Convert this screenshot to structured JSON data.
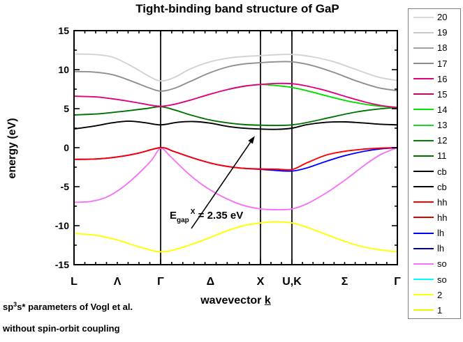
{
  "figure": {
    "title": "Tight-binding band structure of GaP",
    "y_axis_label": "energy (eV)",
    "x_axis_label_prefix": "wavevector ",
    "x_axis_label_k": "k",
    "footnote1": {
      "prefix": "sp",
      "sup": "3",
      "suffix": "s* parameters of Vogl et al."
    },
    "footnote2": "without spin-orbit coupling"
  },
  "annotation": {
    "symbol": "E",
    "subscript": "gap",
    "superscript": "X",
    "value_text": " = 2.35 eV",
    "arrow_tail": {
      "t": 0.363,
      "E": -10.35
    },
    "arrow_tip": {
      "t": 0.559,
      "E": 1.5
    }
  },
  "chart_data": {
    "type": "line",
    "title": "Tight-binding band structure of GaP",
    "xlabel": "wavevector k",
    "ylabel": "energy (eV)",
    "ylim": [
      -15,
      15
    ],
    "y_major_ticks": [
      -15,
      -10,
      -5,
      0,
      5,
      10,
      15
    ],
    "y_minor_step": 2.5,
    "x_special_points": [
      {
        "label": "L",
        "t": 0.0
      },
      {
        "label": "Γ",
        "t": 0.2678
      },
      {
        "label": "X",
        "t": 0.5767
      },
      {
        "label": "U,K",
        "t": 0.6739
      },
      {
        "label": "Γ",
        "t": 1.0
      }
    ],
    "x_direction_labels": [
      {
        "label": "Λ",
        "t": 0.134
      },
      {
        "label": "Δ",
        "t": 0.422
      },
      {
        "label": "Σ",
        "t": 0.837
      }
    ],
    "x_minor_divisions": [
      8,
      9,
      3,
      10
    ],
    "vertical_lines_t": [
      0.2678,
      0.5767,
      0.6739
    ],
    "grid": false,
    "legend_position": "outside-right",
    "legend": [
      {
        "label": "20",
        "color": "#D8D8D8"
      },
      {
        "label": "19",
        "color": "#C9C9C9"
      },
      {
        "label": "18",
        "color": "#A3A3A3"
      },
      {
        "label": "17",
        "color": "#8C8C8C"
      },
      {
        "label": "16",
        "color": "#E4007C"
      },
      {
        "label": "15",
        "color": "#C4006C"
      },
      {
        "label": "14",
        "color": "#00E600"
      },
      {
        "label": "13",
        "color": "#1FD51F"
      },
      {
        "label": "12",
        "color": "#008200"
      },
      {
        "label": "11",
        "color": "#006B00"
      },
      {
        "label": "cb",
        "color": "#000000"
      },
      {
        "label": "cb",
        "color": "#000000"
      },
      {
        "label": "hh",
        "color": "#FF0000"
      },
      {
        "label": "hh",
        "color": "#DF0000"
      },
      {
        "label": "lh",
        "color": "#0000FF"
      },
      {
        "label": "lh",
        "color": "#000085"
      },
      {
        "label": "so",
        "color": "#F473F4"
      },
      {
        "label": "so",
        "color": "#00FFFF"
      },
      {
        "label": "2",
        "color": "#FFFF00"
      },
      {
        "label": "1",
        "color": "#F2F200"
      }
    ],
    "series": [
      {
        "name": "band-1-2",
        "represents": [
          "1",
          "2"
        ],
        "color": "#FFFF00",
        "points": [
          [
            0,
            -11.0
          ],
          [
            0.07,
            -11.25
          ],
          [
            0.14,
            -11.9
          ],
          [
            0.2,
            -12.7
          ],
          [
            0.268,
            -13.35
          ],
          [
            0.33,
            -12.85
          ],
          [
            0.4,
            -11.85
          ],
          [
            0.47,
            -10.7
          ],
          [
            0.53,
            -9.95
          ],
          [
            0.577,
            -9.65
          ],
          [
            0.625,
            -9.5
          ],
          [
            0.674,
            -9.65
          ],
          [
            0.73,
            -10.35
          ],
          [
            0.8,
            -11.45
          ],
          [
            0.87,
            -12.45
          ],
          [
            0.93,
            -13.0
          ],
          [
            1,
            -13.35
          ]
        ]
      },
      {
        "name": "band-so",
        "represents": [
          "so",
          "so"
        ],
        "color": "#F473F4",
        "points": [
          [
            0,
            -7.0
          ],
          [
            0.05,
            -6.9
          ],
          [
            0.1,
            -6.35
          ],
          [
            0.15,
            -5.1
          ],
          [
            0.2,
            -3.3
          ],
          [
            0.24,
            -1.6
          ],
          [
            0.268,
            -0.1
          ],
          [
            0.3,
            -1.2
          ],
          [
            0.35,
            -3.2
          ],
          [
            0.4,
            -4.85
          ],
          [
            0.46,
            -6.3
          ],
          [
            0.52,
            -7.35
          ],
          [
            0.577,
            -7.85
          ],
          [
            0.625,
            -7.95
          ],
          [
            0.674,
            -7.85
          ],
          [
            0.72,
            -7.2
          ],
          [
            0.78,
            -5.8
          ],
          [
            0.84,
            -4.1
          ],
          [
            0.9,
            -2.2
          ],
          [
            0.95,
            -0.85
          ],
          [
            1,
            0
          ]
        ]
      },
      {
        "name": "band-lh",
        "represents": [
          "lh",
          "lh"
        ],
        "color": "#0000FF",
        "points": [
          [
            0,
            -1.5
          ],
          [
            0.07,
            -1.45
          ],
          [
            0.14,
            -1.15
          ],
          [
            0.2,
            -0.7
          ],
          [
            0.268,
            0
          ],
          [
            0.31,
            -0.5
          ],
          [
            0.37,
            -1.35
          ],
          [
            0.44,
            -2.15
          ],
          [
            0.51,
            -2.6
          ],
          [
            0.577,
            -2.78
          ],
          [
            0.62,
            -2.9
          ],
          [
            0.674,
            -3.0
          ],
          [
            0.72,
            -2.6
          ],
          [
            0.78,
            -1.75
          ],
          [
            0.84,
            -1.0
          ],
          [
            0.9,
            -0.45
          ],
          [
            0.95,
            -0.15
          ],
          [
            1,
            0
          ]
        ]
      },
      {
        "name": "band-hh",
        "represents": [
          "hh",
          "hh"
        ],
        "color": "#FF0000",
        "points": [
          [
            0,
            -1.5
          ],
          [
            0.07,
            -1.45
          ],
          [
            0.14,
            -1.15
          ],
          [
            0.2,
            -0.7
          ],
          [
            0.268,
            0
          ],
          [
            0.31,
            -0.5
          ],
          [
            0.37,
            -1.35
          ],
          [
            0.44,
            -2.15
          ],
          [
            0.51,
            -2.6
          ],
          [
            0.577,
            -2.72
          ],
          [
            0.625,
            -2.75
          ],
          [
            0.674,
            -2.8
          ],
          [
            0.72,
            -1.95
          ],
          [
            0.78,
            -0.95
          ],
          [
            0.84,
            -0.45
          ],
          [
            0.9,
            -0.18
          ],
          [
            0.95,
            -0.05
          ],
          [
            1,
            0
          ]
        ]
      },
      {
        "name": "band-cb",
        "represents": [
          "cb",
          "cb"
        ],
        "color": "#000000",
        "points": [
          [
            0,
            2.4
          ],
          [
            0.06,
            2.75
          ],
          [
            0.12,
            3.2
          ],
          [
            0.17,
            3.4
          ],
          [
            0.22,
            3.2
          ],
          [
            0.268,
            2.92
          ],
          [
            0.32,
            3.25
          ],
          [
            0.37,
            3.35
          ],
          [
            0.42,
            3.15
          ],
          [
            0.48,
            2.7
          ],
          [
            0.53,
            2.48
          ],
          [
            0.577,
            2.38
          ],
          [
            0.625,
            2.35
          ],
          [
            0.674,
            2.5
          ],
          [
            0.72,
            2.95
          ],
          [
            0.78,
            3.25
          ],
          [
            0.84,
            3.3
          ],
          [
            0.9,
            3.15
          ],
          [
            0.95,
            3.0
          ],
          [
            1,
            2.92
          ]
        ]
      },
      {
        "name": "band-11-12",
        "represents": [
          "11",
          "12"
        ],
        "color": "#007200",
        "points": [
          [
            0,
            4.2
          ],
          [
            0.08,
            4.35
          ],
          [
            0.16,
            4.7
          ],
          [
            0.22,
            5.0
          ],
          [
            0.268,
            5.25
          ],
          [
            0.31,
            4.85
          ],
          [
            0.36,
            4.2
          ],
          [
            0.42,
            3.55
          ],
          [
            0.48,
            3.15
          ],
          [
            0.53,
            2.95
          ],
          [
            0.577,
            2.88
          ],
          [
            0.625,
            2.85
          ],
          [
            0.674,
            2.92
          ],
          [
            0.73,
            3.3
          ],
          [
            0.8,
            3.95
          ],
          [
            0.87,
            4.55
          ],
          [
            0.94,
            4.95
          ],
          [
            1,
            5.15
          ]
        ]
      },
      {
        "name": "band-13-14",
        "represents": [
          "13",
          "14"
        ],
        "color": "#00DC00",
        "points": [
          [
            0.48,
            7.5
          ],
          [
            0.53,
            7.9
          ],
          [
            0.577,
            8.1
          ],
          [
            0.61,
            8.02
          ],
          [
            0.64,
            7.9
          ],
          [
            0.674,
            7.72
          ],
          [
            0.72,
            7.3
          ],
          [
            0.78,
            6.65
          ],
          [
            0.85,
            5.95
          ],
          [
            0.92,
            5.45
          ],
          [
            1,
            5.15
          ]
        ]
      },
      {
        "name": "band-15-16",
        "represents": [
          "15",
          "16"
        ],
        "color": "#E4007C",
        "points": [
          [
            0,
            6.6
          ],
          [
            0.07,
            6.5
          ],
          [
            0.13,
            6.2
          ],
          [
            0.19,
            5.8
          ],
          [
            0.23,
            5.5
          ],
          [
            0.268,
            5.3
          ],
          [
            0.31,
            5.55
          ],
          [
            0.36,
            6.1
          ],
          [
            0.42,
            6.85
          ],
          [
            0.48,
            7.5
          ],
          [
            0.53,
            7.9
          ],
          [
            0.577,
            8.1
          ],
          [
            0.62,
            8.22
          ],
          [
            0.674,
            8.2
          ],
          [
            0.72,
            7.9
          ],
          [
            0.78,
            7.3
          ],
          [
            0.84,
            6.55
          ],
          [
            0.9,
            5.85
          ],
          [
            0.95,
            5.4
          ],
          [
            1,
            5.15
          ]
        ]
      },
      {
        "name": "band-17-18",
        "represents": [
          "17",
          "18"
        ],
        "color": "#8F8F8F",
        "points": [
          [
            0,
            9.75
          ],
          [
            0.06,
            9.7
          ],
          [
            0.12,
            9.35
          ],
          [
            0.18,
            8.5
          ],
          [
            0.23,
            7.7
          ],
          [
            0.268,
            7.25
          ],
          [
            0.31,
            7.6
          ],
          [
            0.36,
            8.5
          ],
          [
            0.42,
            9.6
          ],
          [
            0.48,
            10.4
          ],
          [
            0.53,
            10.75
          ],
          [
            0.577,
            10.9
          ],
          [
            0.62,
            11.0
          ],
          [
            0.674,
            11.0
          ],
          [
            0.73,
            10.6
          ],
          [
            0.8,
            9.7
          ],
          [
            0.87,
            8.6
          ],
          [
            0.94,
            7.7
          ],
          [
            1,
            7.3
          ]
        ]
      },
      {
        "name": "band-19-20",
        "represents": [
          "19",
          "20"
        ],
        "color": "#D2D2D2",
        "points": [
          [
            0,
            12.0
          ],
          [
            0.06,
            11.95
          ],
          [
            0.12,
            11.6
          ],
          [
            0.18,
            10.4
          ],
          [
            0.23,
            9.2
          ],
          [
            0.268,
            8.55
          ],
          [
            0.31,
            9.0
          ],
          [
            0.36,
            10.1
          ],
          [
            0.42,
            11.0
          ],
          [
            0.48,
            11.5
          ],
          [
            0.53,
            11.7
          ],
          [
            0.577,
            11.8
          ],
          [
            0.62,
            11.9
          ],
          [
            0.674,
            11.95
          ],
          [
            0.73,
            11.7
          ],
          [
            0.8,
            11.05
          ],
          [
            0.87,
            10.05
          ],
          [
            0.94,
            9.05
          ],
          [
            1,
            8.6
          ]
        ]
      }
    ]
  }
}
